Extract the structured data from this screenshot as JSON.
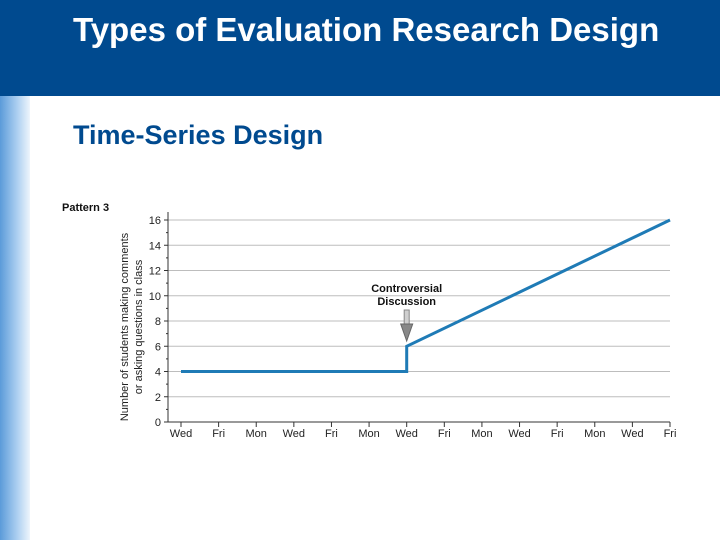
{
  "slide": {
    "title": "Types of Evaluation Research Design",
    "subtitle": "Time-Series Design"
  },
  "colors": {
    "header": "#004a8f",
    "series": "#1f7bb6",
    "arrow": "#888888"
  },
  "chart_data": {
    "type": "line",
    "panel_label": "Pattern 3",
    "title": "",
    "xlabel": "",
    "ylabel_lines": [
      "Number of students making comments",
      "or asking questions in class"
    ],
    "categories": [
      "Wed",
      "Fri",
      "Mon",
      "Wed",
      "Fri",
      "Mon",
      "Wed",
      "Fri",
      "Mon",
      "Wed",
      "Fri",
      "Mon",
      "Wed",
      "Fri"
    ],
    "ylim": [
      0,
      16
    ],
    "yticks": [
      0,
      2,
      4,
      6,
      8,
      10,
      12,
      14,
      16
    ],
    "grid": "horizontal",
    "series": [
      {
        "points": [
          {
            "x": 0,
            "y": 4
          },
          {
            "x": 6,
            "y": 4
          },
          {
            "x": 6,
            "y": 6
          },
          {
            "x": 13,
            "y": 16
          }
        ]
      }
    ],
    "annotations": [
      {
        "lines": [
          "Controversial",
          "Discussion"
        ],
        "x": 6,
        "arrow": true
      }
    ]
  }
}
